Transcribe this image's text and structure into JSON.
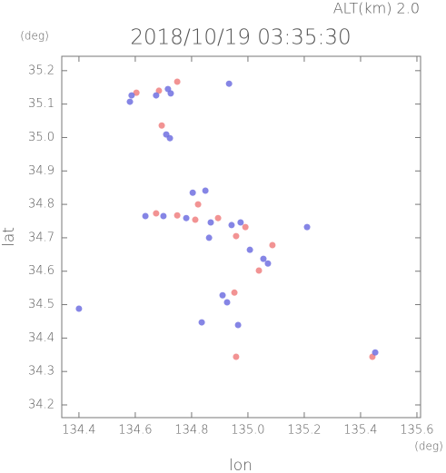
{
  "chart_data": {
    "type": "scatter",
    "title": "2018/10/19 03:35:30",
    "subtitle": "ALT(km) 2.0",
    "x_label": "lon",
    "y_label": "lat",
    "x_unit": "(deg)",
    "y_unit": "(deg)",
    "xlim": [
      134.339,
      135.613
    ],
    "ylim": [
      34.162,
      35.243
    ],
    "xticks": [
      134.4,
      134.6,
      134.8,
      {
        "value": 135,
        "label": "135.0"
      },
      135.2,
      135.4,
      135.6
    ],
    "yticks": [
      34.2,
      34.3,
      34.4,
      34.5,
      34.6,
      34.7,
      34.8,
      34.9,
      {
        "value": 35,
        "label": "35.0"
      },
      35.1,
      35.2
    ],
    "series": [
      {
        "color": "#f08080",
        "x": [
          134.604,
          134.684,
          134.749,
          134.694,
          134.823,
          134.674,
          134.749,
          134.813,
          134.894,
          134.991,
          134.958,
          135.039,
          135.087,
          134.952,
          134.958,
          135.442
        ],
        "y": [
          35.134,
          35.14,
          35.167,
          35.036,
          34.8,
          34.773,
          34.767,
          34.754,
          34.759,
          34.732,
          34.705,
          34.602,
          34.678,
          34.536,
          34.344,
          34.344
        ]
      },
      {
        "color": "#7070e0",
        "x": [
          134.587,
          134.581,
          134.716,
          134.726,
          134.674,
          134.71,
          134.723,
          134.804,
          134.849,
          134.636,
          134.7,
          134.781,
          134.868,
          134.942,
          134.974,
          134.862,
          135.007,
          135.055,
          135.071,
          134.91,
          134.926,
          134.4,
          134.836,
          134.965,
          135.452,
          135.21,
          134.933
        ],
        "y": [
          35.126,
          35.107,
          35.145,
          35.132,
          35.126,
          35.009,
          34.998,
          34.835,
          34.841,
          34.765,
          34.765,
          34.759,
          34.746,
          34.738,
          34.746,
          34.7,
          34.664,
          34.637,
          34.623,
          34.528,
          34.507,
          34.488,
          34.447,
          34.439,
          34.357,
          34.732,
          35.161
        ]
      }
    ]
  }
}
